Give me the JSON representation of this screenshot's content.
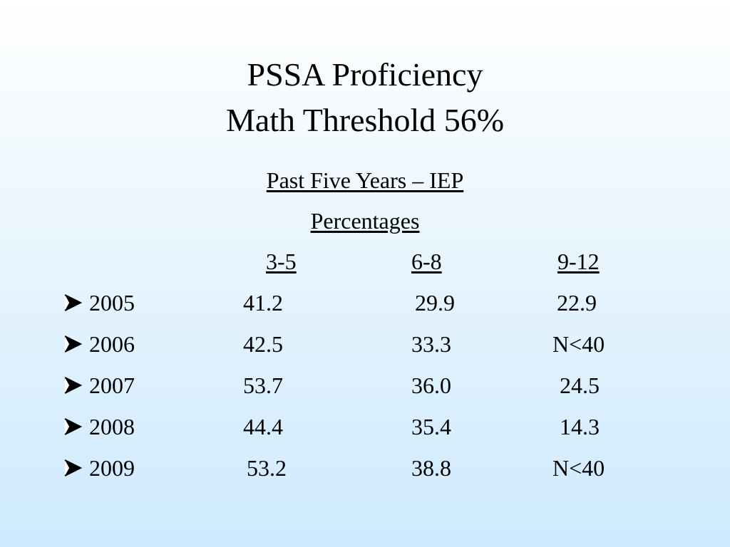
{
  "slide": {
    "title_line1": "PSSA Proficiency",
    "title_line2": "Math Threshold 56%",
    "subtitle": "Past Five Years – IEP",
    "subtitle2": "Percentages",
    "bullet_icon": "arrowhead-bullet-icon"
  },
  "table": {
    "columns": [
      "3-5",
      "6-8",
      "9-12"
    ],
    "rows": [
      {
        "year": "2005",
        "values": [
          "41.2",
          "29.9",
          "22.9"
        ]
      },
      {
        "year": "2006",
        "values": [
          "42.5",
          "33.3",
          "N<40"
        ]
      },
      {
        "year": "2007",
        "values": [
          "53.7",
          "36.0",
          "24.5"
        ]
      },
      {
        "year": "2008",
        "values": [
          "44.4",
          "35.4",
          "14.3"
        ]
      },
      {
        "year": "2009",
        "values": [
          "53.2",
          "38.8",
          "N<40"
        ]
      }
    ]
  }
}
